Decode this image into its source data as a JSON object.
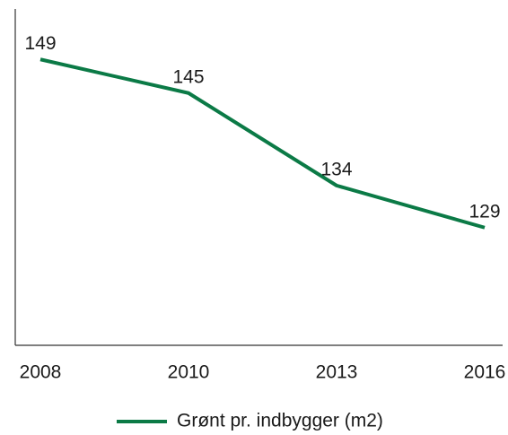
{
  "chart_data": {
    "type": "line",
    "categories": [
      "2008",
      "2010",
      "2013",
      "2016"
    ],
    "series": [
      {
        "name": "Grønt pr. indbygger (m2)",
        "color": "#0b7a46",
        "values": [
          149,
          145,
          134,
          129
        ]
      }
    ],
    "ylim": [
      115,
      155
    ]
  }
}
